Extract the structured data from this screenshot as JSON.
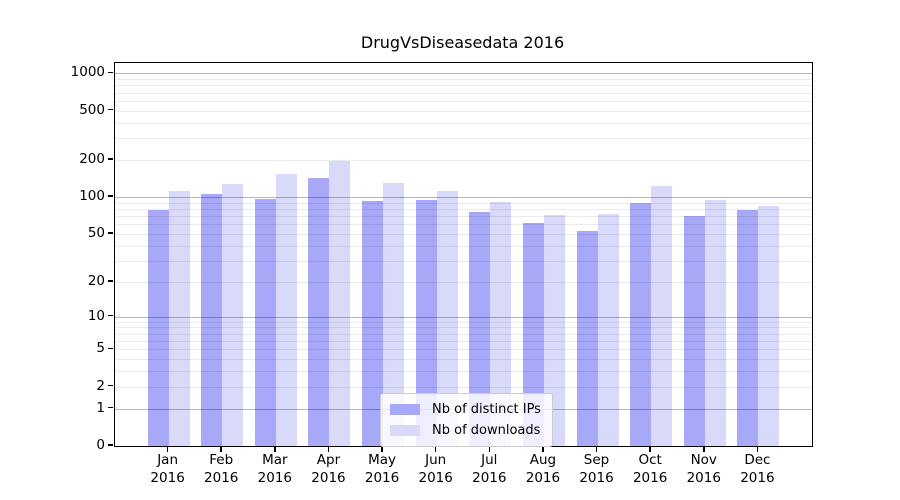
{
  "title": "DrugVsDiseasedata 2016",
  "chart_data": {
    "type": "bar",
    "title": "DrugVsDiseasedata 2016",
    "categories": [
      "Jan 2016",
      "Feb 2016",
      "Mar 2016",
      "Apr 2016",
      "May 2016",
      "Jun 2016",
      "Jul 2016",
      "Aug 2016",
      "Sep 2016",
      "Oct 2016",
      "Nov 2016",
      "Dec 2016"
    ],
    "xtick_line1": [
      "Jan",
      "Feb",
      "Mar",
      "Apr",
      "May",
      "Jun",
      "Jul",
      "Aug",
      "Sep",
      "Oct",
      "Nov",
      "Dec"
    ],
    "xtick_line2": [
      "2016",
      "2016",
      "2016",
      "2016",
      "2016",
      "2016",
      "2016",
      "2016",
      "2016",
      "2016",
      "2016",
      "2016"
    ],
    "series": [
      {
        "name": "Nb of distinct IPs",
        "color": "#a8a8f8",
        "values": [
          78,
          106,
          97,
          143,
          93,
          95,
          75,
          62,
          53,
          90,
          70,
          78
        ]
      },
      {
        "name": "Nb of downloads",
        "color": "#d9d9fa",
        "values": [
          113,
          127,
          155,
          196,
          130,
          112,
          91,
          72,
          73,
          123,
          94,
          84
        ]
      }
    ],
    "xlabel": "",
    "ylabel": "",
    "yscale": "symlog (y position proportional to log10(1+value))",
    "ytick_values": [
      0,
      1,
      2,
      5,
      10,
      20,
      50,
      100,
      200,
      500,
      1000
    ],
    "ytick_labels": [
      "0",
      "1",
      "2",
      "5",
      "10",
      "20",
      "50",
      "100",
      "200",
      "500",
      "1000"
    ],
    "ylim": [
      0,
      1190
    ],
    "grid": "major gridlines at 1,10,100,1000; minor gridlines at 2-9 per decade",
    "legend_position": "lower center",
    "colors": {
      "bar_ips": "#a8a8f8",
      "bar_downloads": "#d9d9fa",
      "grid_major": "#b8b8b8",
      "grid_minor": "#ebebeb",
      "axis": "#000000",
      "legend_border": "#cccccc"
    }
  }
}
